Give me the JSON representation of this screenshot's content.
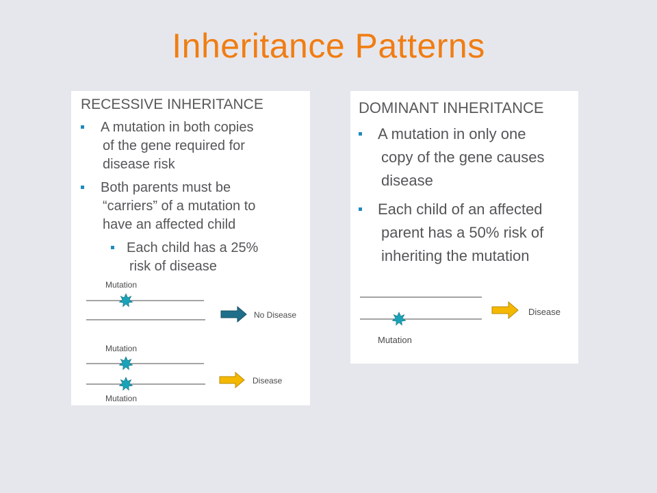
{
  "slide": {
    "title": "Inheritance Patterns"
  },
  "recessive": {
    "heading": "RECESSIVE INHERITANCE",
    "bullets": [
      {
        "lines": [
          "A mutation in both copies",
          "of the gene required for",
          "disease risk"
        ]
      },
      {
        "lines": [
          "Both parents must be",
          "“carriers” of a mutation to",
          "have  an affected child"
        ]
      }
    ],
    "sub_bullet": {
      "lines": [
        "Each child has a 25%",
        "risk of disease"
      ]
    },
    "diagram": {
      "carrier_label": "Mutation",
      "carrier_outcome": "No Disease",
      "affected_label_top": "Mutation",
      "affected_label_bottom": "Mutation",
      "affected_outcome": "Disease"
    }
  },
  "dominant": {
    "heading": "DOMINANT INHERITANCE",
    "bullets": [
      {
        "lines": [
          "A mutation in only one",
          "copy of the gene causes",
          "disease"
        ]
      },
      {
        "lines": [
          "Each child of an affected",
          "parent has a 50% risk of",
          "inheriting the mutation"
        ]
      }
    ],
    "diagram": {
      "mutation_label": "Mutation",
      "outcome": "Disease"
    }
  },
  "colors": {
    "title": "#f07d13",
    "bullet_marker": "#1f8bbb",
    "mutation_star": "#1aa3b8",
    "no_disease_arrow": "#1f6f8a",
    "disease_arrow": "#f5b800"
  },
  "icons": {
    "mutation": "starburst-icon",
    "outcome": "right-arrow-icon"
  }
}
